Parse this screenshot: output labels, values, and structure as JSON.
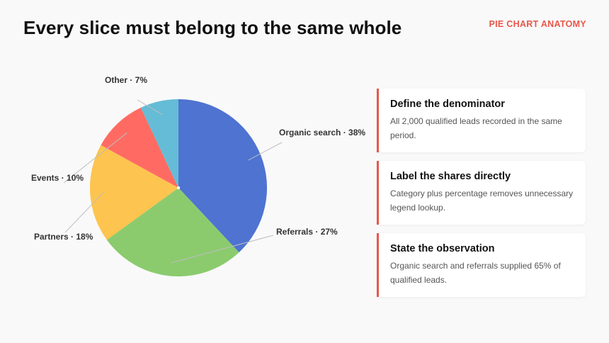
{
  "header": {
    "title": "Every slice must belong to the same whole",
    "kicker": "PIE CHART ANATOMY"
  },
  "colors": {
    "accent": "#e8574a",
    "organic_search": "#4e73d1",
    "referrals": "#8bcb6e",
    "partners": "#fdc44f",
    "events": "#ff6b63",
    "other": "#65bcd6"
  },
  "chart_data": {
    "type": "pie",
    "title": "Every slice must belong to the same whole",
    "start": "12 o'clock",
    "direction": "clockwise",
    "slices": [
      {
        "label": "Organic search · 38%",
        "name": "Organic search",
        "value": 38,
        "color": "#4e73d1"
      },
      {
        "label": "Referrals · 27%",
        "name": "Referrals",
        "value": 27,
        "color": "#8bcb6e"
      },
      {
        "label": "Partners · 18%",
        "name": "Partners",
        "value": 18,
        "color": "#fdc44f"
      },
      {
        "label": "Events · 10%",
        "name": "Events",
        "value": 10,
        "color": "#ff6b63"
      },
      {
        "label": "Other · 7%",
        "name": "Other",
        "value": 7,
        "color": "#65bcd6"
      }
    ]
  },
  "cards": [
    {
      "title": "Define the denominator",
      "body": "All 2,000 qualified leads recorded in the same period."
    },
    {
      "title": "Label the shares directly",
      "body": "Category plus percentage removes unnecessary legend lookup."
    },
    {
      "title": "State the observation",
      "body": "Organic search and referrals supplied 65% of qualified leads."
    }
  ]
}
